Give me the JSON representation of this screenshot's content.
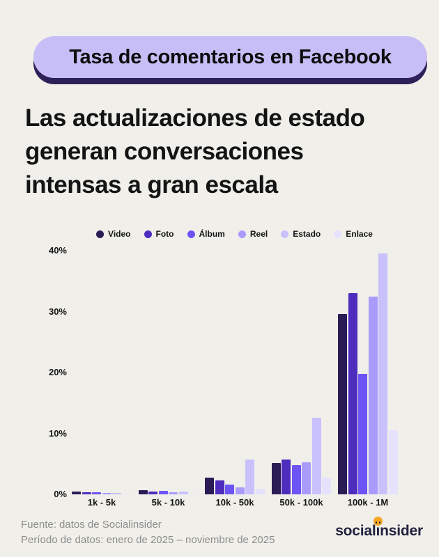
{
  "badge": {
    "label": "Tasa de comentarios en Facebook"
  },
  "heading": {
    "line1": "Las actualizaciones de estado",
    "line2": "generan conversaciones",
    "line3": "intensas a gran escala"
  },
  "chart_data": {
    "type": "bar",
    "title": "Tasa de comentarios en Facebook",
    "categories": [
      "1k - 5k",
      "5k - 10k",
      "10k - 50k",
      "50k - 100k",
      "100k - 1M"
    ],
    "series": [
      {
        "name": "Video",
        "color": "#2a1b55",
        "values": [
          0.5,
          0.7,
          2.7,
          5.2,
          29.6
        ]
      },
      {
        "name": "Foto",
        "color": "#4e2cbd",
        "values": [
          0.3,
          0.5,
          2.3,
          5.7,
          33.0
        ]
      },
      {
        "name": "Álbum",
        "color": "#6c55f4",
        "values": [
          0.3,
          0.6,
          1.6,
          4.8,
          19.8
        ]
      },
      {
        "name": "Reel",
        "color": "#a89bfb",
        "values": [
          0.2,
          0.3,
          1.1,
          5.3,
          32.5
        ]
      },
      {
        "name": "Estado",
        "color": "#c9c1fc",
        "values": [
          0.2,
          0.45,
          5.7,
          12.6,
          39.5
        ]
      },
      {
        "name": "Enlace",
        "color": "#e6e2fd",
        "values": [
          0.1,
          0.15,
          0.9,
          2.7,
          10.5
        ]
      }
    ],
    "xlabel": "",
    "ylabel": "",
    "y_ticks": [
      "0%",
      "10%",
      "20%",
      "30%",
      "40%"
    ],
    "ylim": [
      0,
      40
    ],
    "grid": false,
    "legend_position": "top"
  },
  "footer": {
    "source": "Fuente: datos de Socialinsider",
    "period": "Período de datos: enero de 2025 – noviembre de 2025"
  },
  "logo": {
    "part1": "social",
    "i": "ı",
    "part2": "nsider"
  },
  "colors": {
    "background": "#f0efe9",
    "badge_fill": "#c8bef7",
    "badge_shadow": "#2e2159",
    "text": "#141414",
    "footer_text": "#8d8d8d",
    "logo_navy": "#222240",
    "logo_orange": "#f5a623"
  }
}
